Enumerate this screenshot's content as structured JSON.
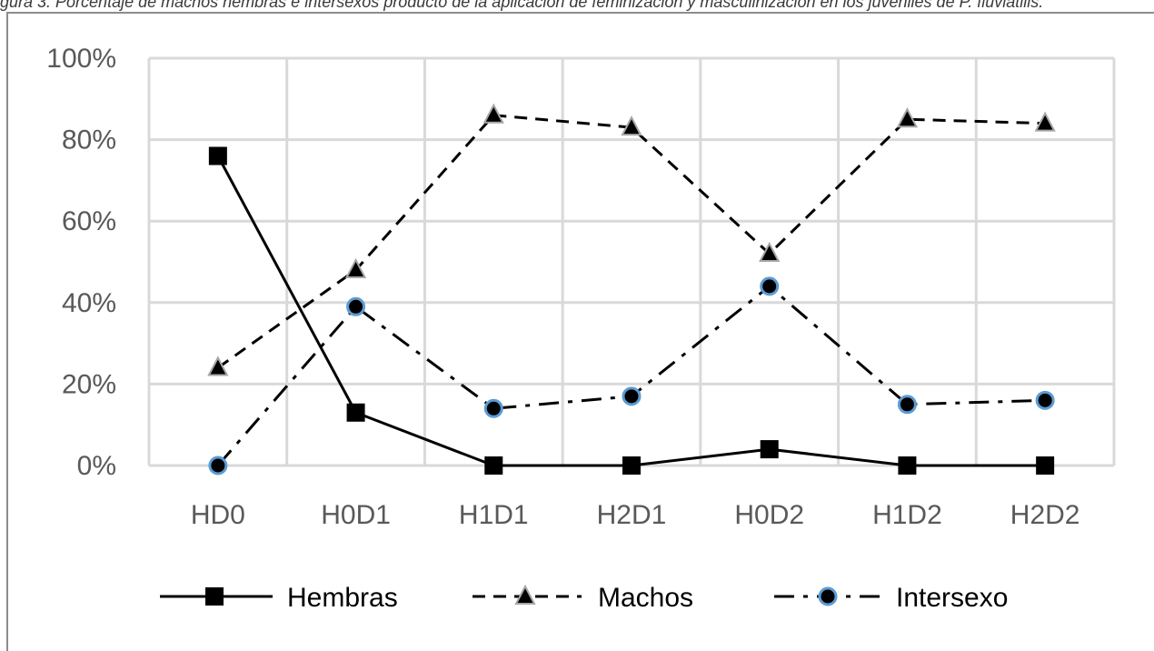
{
  "caption": "gura 3. Porcentaje de machos hembras e intersexos producto de la aplicación de feminización y masculinización en los juveniles de P. fluviatilis.",
  "chart_data": {
    "type": "line",
    "categories": [
      "HD0",
      "H0D1",
      "H1D1",
      "H2D1",
      "H0D2",
      "H1D2",
      "H2D2"
    ],
    "y_ticks": [
      "0%",
      "20%",
      "40%",
      "60%",
      "80%",
      "100%"
    ],
    "ylim": [
      0,
      100
    ],
    "grid": true,
    "legend_position": "bottom",
    "series": [
      {
        "name": "Hembras",
        "values": [
          76,
          13,
          0,
          0,
          4,
          0,
          0
        ],
        "line_style": "solid",
        "marker": "square",
        "color": "#000000"
      },
      {
        "name": "Machos",
        "values": [
          24,
          48,
          86,
          83,
          52,
          85,
          84
        ],
        "line_style": "dashed",
        "marker": "triangle",
        "color": "#000000"
      },
      {
        "name": "Intersexo",
        "values": [
          0,
          39,
          14,
          17,
          44,
          15,
          16
        ],
        "line_style": "dash-dot",
        "marker": "circle",
        "color": "#000000",
        "marker_edge_color": "#5b9bd5"
      }
    ]
  }
}
